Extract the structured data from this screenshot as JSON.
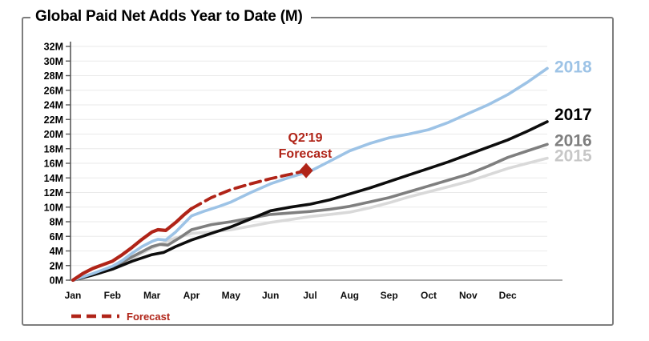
{
  "chart_data": {
    "type": "line",
    "title": "Global Paid Net Adds Year to Date (M)",
    "xlabel": "",
    "ylabel": "",
    "x_axis": {
      "tick_labels": [
        "Jan",
        "Feb",
        "Mar",
        "Apr",
        "May",
        "Jun",
        "Jul",
        "Aug",
        "Sep",
        "Oct",
        "Nov",
        "Dec"
      ],
      "range_months": [
        0,
        12
      ]
    },
    "y_axis": {
      "min": 0,
      "max": 32,
      "step": 2,
      "tick_suffix": "M"
    },
    "grid": true,
    "legend_position": "bottom-left",
    "series": [
      {
        "name": "2015",
        "color": "#d9d9d9",
        "label_color": "#c7c7c7",
        "show_label": true,
        "label_dy": 4,
        "width": 3.6,
        "dashed": false,
        "points": [
          [
            0,
            0
          ],
          [
            0.5,
            0.7
          ],
          [
            1,
            1.5
          ],
          [
            1.5,
            3.0
          ],
          [
            2,
            4.4
          ],
          [
            2.5,
            5.6
          ],
          [
            3,
            6.4
          ],
          [
            3.5,
            6.6
          ],
          [
            4,
            6.9
          ],
          [
            4.5,
            7.4
          ],
          [
            5,
            7.9
          ],
          [
            5.5,
            8.3
          ],
          [
            6,
            8.7
          ],
          [
            6.5,
            9.0
          ],
          [
            7,
            9.3
          ],
          [
            7.5,
            9.9
          ],
          [
            8,
            10.6
          ],
          [
            8.5,
            11.4
          ],
          [
            9,
            12.1
          ],
          [
            9.5,
            12.8
          ],
          [
            10,
            13.5
          ],
          [
            10.5,
            14.4
          ],
          [
            11,
            15.3
          ],
          [
            11.5,
            16.0
          ],
          [
            12,
            16.7
          ]
        ]
      },
      {
        "name": "2016",
        "color": "#7f7f7f",
        "label_color": "#7f7f7f",
        "show_label": true,
        "label_dy": 2,
        "width": 3.6,
        "dashed": false,
        "points": [
          [
            0,
            0
          ],
          [
            0.5,
            0.8
          ],
          [
            1,
            1.7
          ],
          [
            1.5,
            3.2
          ],
          [
            2,
            4.6
          ],
          [
            2.2,
            4.9
          ],
          [
            2.4,
            4.8
          ],
          [
            2.7,
            5.8
          ],
          [
            3,
            6.9
          ],
          [
            3.5,
            7.6
          ],
          [
            4,
            8.0
          ],
          [
            4.5,
            8.5
          ],
          [
            5,
            9.0
          ],
          [
            5.5,
            9.2
          ],
          [
            6,
            9.4
          ],
          [
            6.5,
            9.7
          ],
          [
            7,
            10.1
          ],
          [
            7.5,
            10.7
          ],
          [
            8,
            11.3
          ],
          [
            8.5,
            12.1
          ],
          [
            9,
            12.9
          ],
          [
            9.5,
            13.7
          ],
          [
            10,
            14.5
          ],
          [
            10.5,
            15.6
          ],
          [
            11,
            16.8
          ],
          [
            11.5,
            17.7
          ],
          [
            12,
            18.6
          ]
        ]
      },
      {
        "name": "2017",
        "color": "#0d0d0d",
        "label_color": "#000000",
        "show_label": true,
        "label_dy": -2,
        "width": 3.6,
        "dashed": false,
        "points": [
          [
            0,
            0
          ],
          [
            0.5,
            0.7
          ],
          [
            1,
            1.5
          ],
          [
            1.5,
            2.6
          ],
          [
            2,
            3.5
          ],
          [
            2.3,
            3.8
          ],
          [
            2.6,
            4.6
          ],
          [
            3,
            5.5
          ],
          [
            3.5,
            6.4
          ],
          [
            4,
            7.3
          ],
          [
            4.5,
            8.4
          ],
          [
            5,
            9.5
          ],
          [
            5.5,
            10.0
          ],
          [
            6,
            10.4
          ],
          [
            6.5,
            11.0
          ],
          [
            7,
            11.8
          ],
          [
            7.5,
            12.6
          ],
          [
            8,
            13.5
          ],
          [
            8.5,
            14.4
          ],
          [
            9,
            15.3
          ],
          [
            9.5,
            16.2
          ],
          [
            10,
            17.2
          ],
          [
            10.5,
            18.2
          ],
          [
            11,
            19.2
          ],
          [
            11.5,
            20.4
          ],
          [
            12,
            21.7
          ]
        ]
      },
      {
        "name": "2018",
        "color": "#9dc3e6",
        "label_color": "#9dc3e6",
        "show_label": true,
        "label_dy": 5,
        "width": 3.6,
        "dashed": false,
        "points": [
          [
            0,
            0
          ],
          [
            0.5,
            0.9
          ],
          [
            1,
            1.9
          ],
          [
            1.25,
            2.7
          ],
          [
            1.5,
            3.7
          ],
          [
            1.75,
            4.6
          ],
          [
            2,
            5.3
          ],
          [
            2.15,
            5.6
          ],
          [
            2.35,
            5.5
          ],
          [
            2.6,
            6.6
          ],
          [
            3,
            8.8
          ],
          [
            3.3,
            9.4
          ],
          [
            3.7,
            10.1
          ],
          [
            4,
            10.7
          ],
          [
            4.5,
            12.0
          ],
          [
            5,
            13.2
          ],
          [
            5.5,
            14.1
          ],
          [
            6,
            14.9
          ],
          [
            6.5,
            16.3
          ],
          [
            7,
            17.7
          ],
          [
            7.5,
            18.7
          ],
          [
            8,
            19.5
          ],
          [
            8.5,
            20.0
          ],
          [
            9,
            20.6
          ],
          [
            9.5,
            21.6
          ],
          [
            10,
            22.8
          ],
          [
            10.5,
            24.0
          ],
          [
            11,
            25.4
          ],
          [
            11.5,
            27.1
          ],
          [
            12,
            29.0
          ]
        ]
      },
      {
        "name": "Q1'19 actual",
        "color": "#b02418",
        "show_label": false,
        "width": 4.2,
        "dashed": false,
        "points": [
          [
            0,
            0
          ],
          [
            0.25,
            0.9
          ],
          [
            0.5,
            1.6
          ],
          [
            0.75,
            2.1
          ],
          [
            1,
            2.6
          ],
          [
            1.25,
            3.5
          ],
          [
            1.5,
            4.5
          ],
          [
            1.75,
            5.6
          ],
          [
            2,
            6.6
          ],
          [
            2.15,
            6.9
          ],
          [
            2.35,
            6.8
          ],
          [
            2.6,
            7.9
          ],
          [
            2.8,
            8.9
          ],
          [
            3,
            9.8
          ]
        ]
      },
      {
        "name": "Q2'19 forecast",
        "color": "#b02418",
        "show_label": false,
        "width": 3.8,
        "dashed": true,
        "points": [
          [
            3,
            9.8
          ],
          [
            3.5,
            11.3
          ],
          [
            4,
            12.4
          ],
          [
            4.5,
            13.2
          ],
          [
            5,
            13.9
          ],
          [
            5.5,
            14.5
          ],
          [
            5.9,
            15.0
          ]
        ]
      }
    ],
    "annotation": {
      "line1": "Q2'19",
      "line2": "Forecast",
      "marker": {
        "shape": "diamond",
        "month": 5.9,
        "value": 15.0
      }
    },
    "legend": {
      "label": "Forecast",
      "style": "dashed"
    }
  },
  "colors": {
    "forecast_red": "#b02418",
    "frame_gray": "#7d7d7d",
    "gridline": "#eaeaea",
    "axis": "#8f8f8f"
  }
}
